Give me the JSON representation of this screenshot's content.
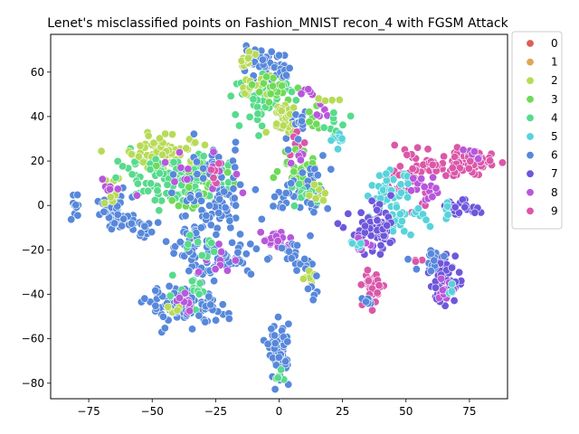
{
  "chart_data": {
    "type": "scatter",
    "title": "Lenet's misclassified points on Fashion_MNIST recon_4 with FGSM Attack",
    "xlabel": "",
    "ylabel": "",
    "xlim": [
      -90,
      90
    ],
    "ylim": [
      -87,
      77
    ],
    "xticks": [
      -75,
      -50,
      -25,
      0,
      25,
      50,
      75
    ],
    "yticks": [
      -80,
      -60,
      -40,
      -20,
      0,
      20,
      40,
      60
    ],
    "grid": false,
    "legend_position": "outside-right",
    "legend_labels": [
      "0",
      "1",
      "2",
      "3",
      "4",
      "5",
      "6",
      "7",
      "8",
      "9"
    ],
    "colors": [
      "#db5f57",
      "#dba957",
      "#b8db57",
      "#6edb57",
      "#57db8c",
      "#57d3db",
      "#5788db",
      "#6e57db",
      "#b857db",
      "#db57a9"
    ],
    "clusters": [
      {
        "class": "6",
        "x": -80,
        "y": -1,
        "sx": 1.5,
        "sy": 3.5,
        "n": 10
      },
      {
        "class": "6",
        "x": -65,
        "y": -4,
        "sx": 3.5,
        "sy": 4,
        "n": 40
      },
      {
        "class": "2",
        "x": -66,
        "y": 6,
        "sx": 2,
        "sy": 3,
        "n": 10
      },
      {
        "class": "8",
        "x": -67,
        "y": 9,
        "sx": 1.5,
        "sy": 2,
        "n": 6
      },
      {
        "class": "6",
        "x": -58,
        "y": -8,
        "sx": 3,
        "sy": 3,
        "n": 15
      },
      {
        "class": "4",
        "x": -58,
        "y": 15,
        "sx": 3,
        "sy": 5,
        "n": 15
      },
      {
        "class": "6",
        "x": -53,
        "y": -10,
        "sx": 2,
        "sy": 2,
        "n": 8
      },
      {
        "class": "2",
        "x": -44,
        "y": 25,
        "sx": 8,
        "sy": 4,
        "n": 60
      },
      {
        "class": "4",
        "x": -38,
        "y": 12,
        "sx": 9,
        "sy": 6,
        "n": 110
      },
      {
        "class": "3",
        "x": -32,
        "y": 8,
        "sx": 6,
        "sy": 6,
        "n": 25
      },
      {
        "class": "6",
        "x": -25,
        "y": 5,
        "sx": 7,
        "sy": 10,
        "n": 80
      },
      {
        "class": "8",
        "x": -36,
        "y": 15,
        "sx": 8,
        "sy": 8,
        "n": 15
      },
      {
        "class": "9",
        "x": -25,
        "y": 18,
        "sx": 3,
        "sy": 3,
        "n": 6
      },
      {
        "class": "6",
        "x": -36,
        "y": -18,
        "sx": 4,
        "sy": 8,
        "n": 40
      },
      {
        "class": "6",
        "x": -22,
        "y": -25,
        "sx": 7,
        "sy": 4,
        "n": 60
      },
      {
        "class": "8",
        "x": -25,
        "y": -25,
        "sx": 3,
        "sy": 4,
        "n": 10
      },
      {
        "class": "4",
        "x": -30,
        "y": -20,
        "sx": 3,
        "sy": 3,
        "n": 10
      },
      {
        "class": "6",
        "x": -38,
        "y": -45,
        "sx": 7,
        "sy": 4,
        "n": 90
      },
      {
        "class": "4",
        "x": -36,
        "y": -40,
        "sx": 4,
        "sy": 3,
        "n": 15
      },
      {
        "class": "8",
        "x": -36,
        "y": -45,
        "sx": 4,
        "sy": 3,
        "n": 10
      },
      {
        "class": "6",
        "x": -26,
        "y": -48,
        "sx": 3,
        "sy": 2.5,
        "n": 15
      },
      {
        "class": "2",
        "x": -42,
        "y": -48,
        "sx": 2,
        "sy": 1.5,
        "n": 5
      },
      {
        "class": "6",
        "x": -8,
        "y": 64,
        "sx": 5,
        "sy": 3,
        "n": 45
      },
      {
        "class": "2",
        "x": -12,
        "y": 65,
        "sx": 2,
        "sy": 2,
        "n": 10
      },
      {
        "class": "4",
        "x": -6,
        "y": 48,
        "sx": 6,
        "sy": 5,
        "n": 55
      },
      {
        "class": "2",
        "x": -10,
        "y": 54,
        "sx": 4,
        "sy": 2.5,
        "n": 15
      },
      {
        "class": "3",
        "x": -1,
        "y": 52,
        "sx": 4,
        "sy": 3,
        "n": 20
      },
      {
        "class": "6",
        "x": 2,
        "y": 38,
        "sx": 2,
        "sy": 3,
        "n": 10
      },
      {
        "class": "2",
        "x": 2,
        "y": 40,
        "sx": 3,
        "sy": 4,
        "n": 25
      },
      {
        "class": "6",
        "x": 2,
        "y": 60,
        "sx": 2,
        "sy": 2.5,
        "n": 10
      },
      {
        "class": "6",
        "x": 10,
        "y": 38,
        "sx": 2,
        "sy": 3,
        "n": 10
      },
      {
        "class": "8",
        "x": 11,
        "y": 51,
        "sx": 2,
        "sy": 1.5,
        "n": 5
      },
      {
        "class": "9",
        "x": 5,
        "y": 28,
        "sx": 3,
        "sy": 3,
        "n": 6
      },
      {
        "class": "3",
        "x": 8,
        "y": 18,
        "sx": 4,
        "sy": 5,
        "n": 30
      },
      {
        "class": "6",
        "x": 12,
        "y": 10,
        "sx": 4,
        "sy": 7,
        "n": 35
      },
      {
        "class": "4",
        "x": 10,
        "y": 5,
        "sx": 3,
        "sy": 3,
        "n": 12
      },
      {
        "class": "2",
        "x": 15,
        "y": 5,
        "sx": 2,
        "sy": 3,
        "n": 10
      },
      {
        "class": "8",
        "x": 8,
        "y": 22,
        "sx": 2,
        "sy": 2,
        "n": 5
      },
      {
        "class": "6",
        "x": 2,
        "y": 3,
        "sx": 2,
        "sy": 4,
        "n": 12
      },
      {
        "class": "3",
        "x": 14,
        "y": 38,
        "sx": 2.5,
        "sy": 2.5,
        "n": 8
      },
      {
        "class": "8",
        "x": 17,
        "y": 43,
        "sx": 2,
        "sy": 2,
        "n": 6
      },
      {
        "class": "4",
        "x": 22,
        "y": 35,
        "sx": 2.5,
        "sy": 3,
        "n": 12
      },
      {
        "class": "5",
        "x": 24,
        "y": 30,
        "sx": 2,
        "sy": 2,
        "n": 8
      },
      {
        "class": "2",
        "x": 21,
        "y": 48,
        "sx": 2,
        "sy": 1.5,
        "n": 5
      },
      {
        "class": "8",
        "x": -1,
        "y": -16,
        "sx": 3,
        "sy": 2.5,
        "n": 20
      },
      {
        "class": "6",
        "x": 5,
        "y": -22,
        "sx": 3,
        "sy": 3,
        "n": 15
      },
      {
        "class": "6",
        "x": 10,
        "y": -28,
        "sx": 2,
        "sy": 3,
        "n": 10
      },
      {
        "class": "2",
        "x": 12,
        "y": -32,
        "sx": 1.5,
        "sy": 3,
        "n": 8
      },
      {
        "class": "6",
        "x": 15,
        "y": -38,
        "sx": 1.5,
        "sy": 3,
        "n": 6
      },
      {
        "class": "6",
        "x": 0,
        "y": -66,
        "sx": 2,
        "sy": 6,
        "n": 60
      },
      {
        "class": "4",
        "x": 0,
        "y": -76,
        "sx": 1.5,
        "sy": 1.5,
        "n": 5
      },
      {
        "class": "9",
        "x": 52,
        "y": 14,
        "sx": 6,
        "sy": 7,
        "n": 50
      },
      {
        "class": "5",
        "x": 44,
        "y": 6,
        "sx": 4,
        "sy": 4,
        "n": 40
      },
      {
        "class": "5",
        "x": 48,
        "y": -7,
        "sx": 5,
        "sy": 3,
        "n": 30
      },
      {
        "class": "8",
        "x": 57,
        "y": 8,
        "sx": 3,
        "sy": 3,
        "n": 15
      },
      {
        "class": "7",
        "x": 38,
        "y": -12,
        "sx": 5,
        "sy": 5,
        "n": 70
      },
      {
        "class": "8",
        "x": 33,
        "y": -18,
        "sx": 2,
        "sy": 2,
        "n": 8
      },
      {
        "class": "5",
        "x": 30,
        "y": -17,
        "sx": 2,
        "sy": 2,
        "n": 5
      },
      {
        "class": "9",
        "x": 37,
        "y": -37,
        "sx": 2,
        "sy": 4.5,
        "n": 35
      },
      {
        "class": "6",
        "x": 34,
        "y": -43,
        "sx": 2,
        "sy": 1.5,
        "n": 6
      },
      {
        "class": "9",
        "x": 74,
        "y": 19,
        "sx": 5,
        "sy": 3,
        "n": 60
      },
      {
        "class": "9",
        "x": 62,
        "y": 18,
        "sx": 3,
        "sy": 1.5,
        "n": 12
      },
      {
        "class": "8",
        "x": 77,
        "y": 22,
        "sx": 2,
        "sy": 2,
        "n": 6
      },
      {
        "class": "7",
        "x": 72,
        "y": -1,
        "sx": 4,
        "sy": 1.5,
        "n": 20
      },
      {
        "class": "5",
        "x": 67,
        "y": -2,
        "sx": 1.5,
        "sy": 1.5,
        "n": 4
      },
      {
        "class": "7",
        "x": 65,
        "y": -32,
        "sx": 3,
        "sy": 6,
        "n": 60
      },
      {
        "class": "6",
        "x": 60,
        "y": -25,
        "sx": 3,
        "sy": 3,
        "n": 15
      },
      {
        "class": "8",
        "x": 66,
        "y": -38,
        "sx": 2,
        "sy": 3,
        "n": 10
      },
      {
        "class": "5",
        "x": 68,
        "y": -38,
        "sx": 1.5,
        "sy": 1.5,
        "n": 4
      },
      {
        "class": "9",
        "x": 55,
        "y": -25,
        "sx": 1,
        "sy": 1,
        "n": 3
      }
    ]
  }
}
